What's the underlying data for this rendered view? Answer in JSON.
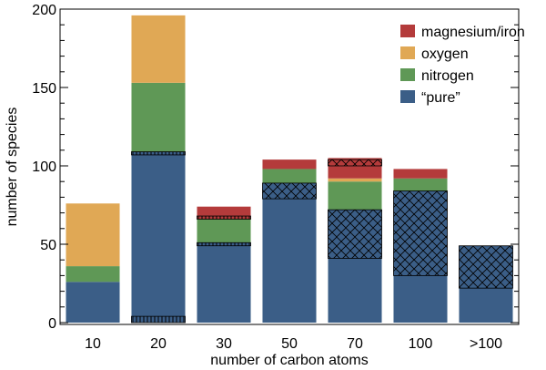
{
  "chart_data": {
    "type": "bar",
    "stacked": true,
    "categories": [
      "10",
      "20",
      "30",
      "50",
      "70",
      "100",
      ">100"
    ],
    "xlabel": "number of carbon atoms",
    "ylabel": "number of species",
    "ylim": [
      0,
      200
    ],
    "yticks": [
      0,
      50,
      100,
      150,
      200
    ],
    "grid": false,
    "legend_position": "top-right",
    "legend_order": [
      "magnesium/iron",
      "oxygen",
      "nitrogen",
      "“pure”"
    ],
    "series": [
      {
        "name": "“pure”",
        "color": "#3b5e87",
        "values": [
          26,
          109,
          51,
          89,
          72,
          84,
          49
        ]
      },
      {
        "name": "nitrogen",
        "color": "#5f9856",
        "values": [
          10,
          44,
          15,
          9,
          18,
          8,
          0
        ]
      },
      {
        "name": "oxygen",
        "color": "#e0a855",
        "values": [
          40,
          43,
          0,
          0,
          2,
          0,
          0
        ]
      },
      {
        "name": "magnesium/iron",
        "color": "#b43b3b",
        "values": [
          0,
          0,
          8,
          6,
          13,
          6,
          0
        ]
      }
    ],
    "hatched_portions": [
      {
        "category": "20",
        "pattern": "vertical",
        "from": 0,
        "to": 4
      },
      {
        "category": "20",
        "pattern": "vertical",
        "from": 107,
        "to": 109
      },
      {
        "category": "30",
        "pattern": "vertical",
        "from": 49,
        "to": 51
      },
      {
        "category": "30",
        "pattern": "vertical",
        "from": 66,
        "to": 68
      },
      {
        "category": "50",
        "pattern": "crosshatch",
        "from": 79,
        "to": 89
      },
      {
        "category": "70",
        "pattern": "crosshatch",
        "from": 41,
        "to": 72
      },
      {
        "category": "70",
        "pattern": "crosshatch",
        "from": 100,
        "to": 104
      },
      {
        "category": "100",
        "pattern": "crosshatch",
        "from": 30,
        "to": 84
      },
      {
        "category": ">100",
        "pattern": "crosshatch",
        "from": 22,
        "to": 49
      }
    ]
  }
}
